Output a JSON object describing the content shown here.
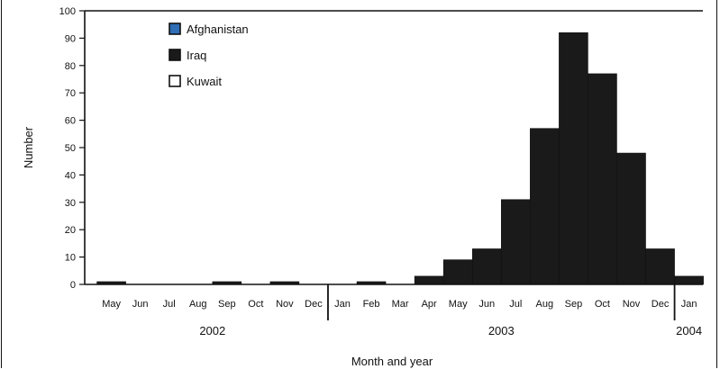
{
  "chart_data": {
    "type": "bar",
    "xlabel": "Month and year",
    "ylabel": "Number",
    "ylim": [
      0,
      100
    ],
    "y_ticks": [
      0,
      10,
      20,
      30,
      40,
      50,
      60,
      70,
      80,
      90,
      100
    ],
    "grid": false,
    "legend_position": "top-left",
    "categories": [
      "May",
      "Jun",
      "Jul",
      "Aug",
      "Sep",
      "Oct",
      "Nov",
      "Dec",
      "Jan",
      "Feb",
      "Mar",
      "Apr",
      "May",
      "Jun",
      "Jul",
      "Aug",
      "Sep",
      "Oct",
      "Nov",
      "Dec",
      "Jan"
    ],
    "years": [
      {
        "label": "2002",
        "start": 0,
        "end": 7
      },
      {
        "label": "2003",
        "start": 8,
        "end": 19
      },
      {
        "label": "2004",
        "start": 20,
        "end": 20
      }
    ],
    "series": [
      {
        "name": "Afghanistan",
        "color": "#2f6db5",
        "values": [
          0,
          0,
          0,
          0,
          0,
          0,
          0,
          0,
          0,
          0,
          0,
          0,
          0,
          0,
          0,
          0,
          0,
          0,
          0,
          0,
          0
        ]
      },
      {
        "name": "Iraq",
        "color": "#1a1a1a",
        "values": [
          1,
          0,
          0,
          0,
          1,
          0,
          1,
          0,
          0,
          1,
          0,
          3,
          9,
          13,
          31,
          57,
          92,
          77,
          48,
          13,
          3
        ]
      },
      {
        "name": "Kuwait",
        "color": "#ffffff",
        "values": [
          0,
          0,
          0,
          0,
          0,
          0,
          0,
          0,
          0,
          0,
          0,
          0,
          0,
          0,
          0,
          0,
          0,
          0,
          0,
          0,
          0
        ]
      }
    ]
  }
}
